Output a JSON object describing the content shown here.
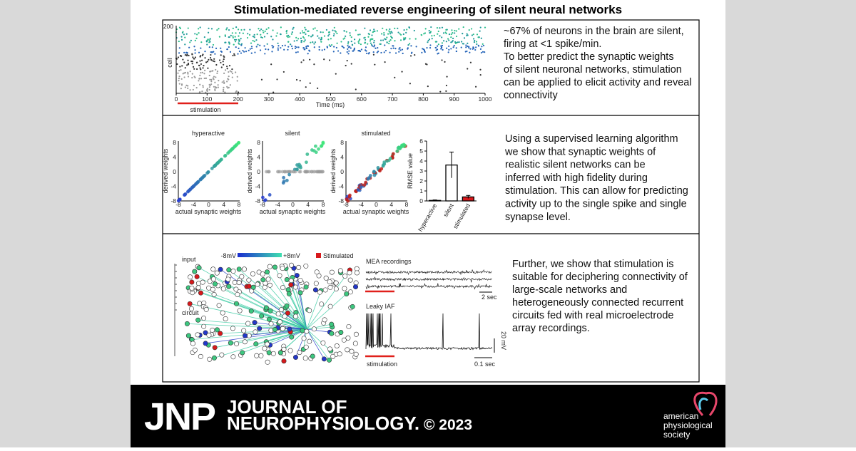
{
  "title": "Stimulation-mediated reverse engineering of silent neural networks",
  "panel1": {
    "ylabel": "cell",
    "ytick": "200",
    "xticks": [
      0,
      100,
      200,
      300,
      400,
      500,
      600,
      700,
      800,
      900,
      1000
    ],
    "xlabel": "Time (ms)",
    "stimulation": "stimulation",
    "text": [
      "~67% of neurons in the brain are silent,",
      "firing at <1 spike/min.",
      "To better predict the synaptic weights",
      "of silent neuronal networks, stimulation",
      "can be applied to elicit activity and reveal",
      "connectivity"
    ]
  },
  "panel2": {
    "plots": [
      "hyperactive",
      "silent",
      "stimulated"
    ],
    "xlabel": "actual synaptic weights",
    "ylabel": "derived weights",
    "ticks": [
      -8,
      -4,
      0,
      4,
      8
    ],
    "bar_chart": {
      "type": "bar",
      "ylabel": "RMSE value",
      "categories": [
        "hyperactive",
        "silent",
        "stimulated"
      ],
      "values": [
        0.05,
        3.6,
        0.4
      ],
      "errors": [
        0.05,
        1.3,
        0.15
      ],
      "colors": [
        "#ffffff",
        "#ffffff",
        "#d7191c"
      ],
      "ylim": [
        0,
        6
      ],
      "yticks": [
        0,
        1,
        2,
        3,
        4,
        5,
        6
      ]
    },
    "text": [
      "Using a supervised learning algorithm",
      "we show that synaptic weights of",
      "realistic silent networks can be",
      "inferred with high fidelity during",
      "stimulation. This can allow for predicting",
      "activity up to the single spike and single",
      "synapse level."
    ]
  },
  "panel3": {
    "input": "input",
    "circuit": "circuit",
    "cbar_min": "-8mV",
    "cbar_max": "+8mV",
    "stimulated": "Stimulated",
    "mea": "MEA recordings",
    "mea_scale": "2 sec",
    "iaf": "Leaky IAF",
    "iaf_vscale": "20 mV",
    "stimulation": "stimulation",
    "iaf_scale": "0.1 sec",
    "text": [
      "Further, we show that stimulation is",
      "suitable for deciphering connectivity of",
      "large-scale networks and",
      "heterogeneously connected recurrent",
      "circuits fed with real microelectrode",
      "array recordings."
    ]
  },
  "footer": {
    "journal_short": "JNP",
    "journal_line1": "JOURNAL OF",
    "journal_line2": "NEUROPHYSIOLOGY.",
    "year": "© 2023",
    "society": [
      "american",
      "physiological",
      "society"
    ]
  }
}
